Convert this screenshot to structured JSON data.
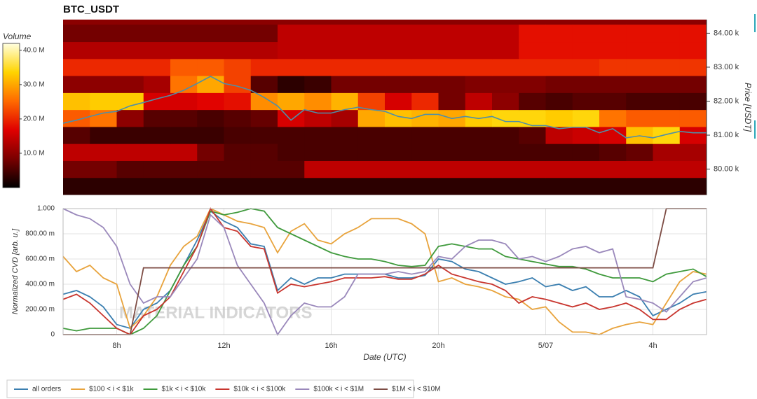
{
  "chart_data": [
    {
      "type": "heatmap",
      "title": "BTC_USDT",
      "ylabel": "Price [USDT]",
      "xlim": [
        6,
        30
      ],
      "x_edges": [
        6,
        7,
        8,
        9,
        10,
        11,
        12,
        13,
        14,
        15,
        16,
        17,
        18,
        19,
        20,
        21,
        22,
        23,
        24,
        25,
        26,
        27,
        28,
        29,
        30
      ],
      "y_edges": [
        79.25,
        79.75,
        80.25,
        80.75,
        81.25,
        81.75,
        82.25,
        82.75,
        83.25,
        83.75,
        84.25
      ],
      "ylim": [
        79.25,
        84.4
      ],
      "yticks": [
        {
          "value": 80,
          "label": "80.00 k"
        },
        {
          "value": 81,
          "label": "81.00 k"
        },
        {
          "value": 82,
          "label": "82.00 k"
        },
        {
          "value": 83,
          "label": "83.00 k"
        },
        {
          "value": 84,
          "label": "84.00 k"
        }
      ],
      "background": "#8b0000",
      "values": [
        [
          3,
          3,
          3,
          3,
          3,
          3,
          3,
          3,
          3,
          3,
          3,
          3,
          3,
          3,
          3,
          3,
          3,
          3,
          3,
          3,
          3,
          3,
          3,
          3
        ],
        [
          8,
          8,
          6,
          6,
          6,
          6,
          6,
          6,
          6,
          14,
          14,
          14,
          14,
          14,
          14,
          14,
          14,
          14,
          14,
          14,
          14,
          14,
          14,
          14
        ],
        [
          14,
          14,
          14,
          14,
          14,
          8,
          6,
          6,
          5,
          5,
          5,
          5,
          5,
          5,
          5,
          5,
          5,
          5,
          5,
          5,
          6,
          7,
          12,
          12
        ],
        [
          6,
          4,
          4,
          4,
          4,
          4,
          5,
          5,
          5,
          5,
          5,
          5,
          5,
          5,
          5,
          5,
          5,
          6,
          14,
          15,
          16,
          32,
          34,
          16
        ],
        [
          24,
          26,
          10,
          6,
          6,
          5,
          6,
          7,
          16,
          14,
          12,
          30,
          32,
          31,
          30,
          33,
          34,
          34,
          33,
          34,
          26,
          24,
          24,
          24
        ],
        [
          32,
          33,
          33,
          16,
          16,
          17,
          18,
          28,
          30,
          28,
          31,
          22,
          16,
          20,
          8,
          14,
          10,
          6,
          5,
          6,
          6,
          5,
          5,
          5
        ],
        [
          10,
          10,
          10,
          12,
          26,
          30,
          22,
          6,
          3,
          4,
          8,
          8,
          8,
          8,
          8,
          9,
          9,
          9,
          8,
          8,
          8,
          8,
          8,
          8
        ],
        [
          20,
          20,
          20,
          20,
          24,
          24,
          22,
          20,
          20,
          20,
          20,
          20,
          20,
          20,
          20,
          20,
          20,
          20,
          20,
          20,
          21,
          21,
          21,
          21
        ],
        [
          13,
          13,
          13,
          13,
          13,
          13,
          13,
          13,
          14,
          14,
          14,
          14,
          14,
          14,
          14,
          14,
          14,
          18,
          18,
          18,
          18,
          18,
          18,
          18
        ],
        [
          8,
          8,
          8,
          8,
          8,
          8,
          8,
          8,
          14,
          14,
          14,
          14,
          14,
          14,
          14,
          14,
          14,
          18,
          18,
          18,
          18,
          18,
          18,
          18
        ]
      ],
      "colorscale": [
        "#000000",
        "#7a0000",
        "#e00000",
        "#ff6a00",
        "#ffd400",
        "#ffffe0"
      ],
      "colorbar": {
        "title": "Volume",
        "lim": [
          0,
          42
        ],
        "ticks": [
          {
            "value": 10,
            "label": "10.0 M"
          },
          {
            "value": 20,
            "label": "20.0 M"
          },
          {
            "value": 30,
            "label": "30.0 M"
          },
          {
            "value": 40,
            "label": "40.0 M"
          }
        ]
      },
      "price": {
        "color": "#4f8fa8",
        "x": [
          6,
          6.5,
          7,
          7.5,
          8,
          8.5,
          9,
          9.5,
          10,
          10.5,
          11,
          11.5,
          12,
          12.5,
          13,
          13.5,
          14,
          14.5,
          15,
          15.5,
          16,
          16.5,
          17,
          17.5,
          18,
          18.5,
          19,
          19.5,
          20,
          20.5,
          21,
          21.5,
          22,
          22.5,
          23,
          23.5,
          24,
          24.5,
          25,
          25.5,
          26,
          26.5,
          27,
          27.5,
          28,
          28.5,
          29,
          29.5,
          30
        ],
        "values": [
          81.35,
          81.44,
          81.55,
          81.65,
          81.7,
          81.86,
          81.96,
          82.07,
          82.17,
          82.32,
          82.52,
          82.73,
          82.52,
          82.44,
          82.32,
          82.11,
          81.86,
          81.44,
          81.75,
          81.65,
          81.65,
          81.75,
          81.82,
          81.75,
          81.7,
          81.55,
          81.49,
          81.61,
          81.61,
          81.49,
          81.55,
          81.49,
          81.55,
          81.4,
          81.4,
          81.28,
          81.28,
          81.19,
          81.23,
          81.23,
          81.07,
          81.19,
          80.92,
          80.98,
          80.92,
          81.02,
          81.11,
          81.07,
          81.07
        ]
      }
    },
    {
      "type": "line",
      "xlabel": "Date (UTC)",
      "ylabel": "Normalized CVD [arb. u.]",
      "watermark": "MATERIAL INDICATORS",
      "grid": true,
      "legend": "bottom",
      "xlim": [
        6,
        30
      ],
      "xticks": [
        {
          "value": 8,
          "label": "8h"
        },
        {
          "value": 12,
          "label": "12h"
        },
        {
          "value": 16,
          "label": "16h"
        },
        {
          "value": 20,
          "label": "20h"
        },
        {
          "value": 24,
          "label": "5/07"
        },
        {
          "value": 28,
          "label": "4h"
        }
      ],
      "ylim": [
        0,
        1
      ],
      "yticks": [
        0,
        {
          "value": 0.2,
          "label": "200.00 m"
        },
        {
          "value": 0.4,
          "label": "400.00 m"
        },
        {
          "value": 0.6,
          "label": "600.00 m"
        },
        {
          "value": 0.8,
          "label": "800.00 m"
        },
        {
          "value": 1,
          "label": "1.000"
        }
      ],
      "x": [
        6,
        6.5,
        7,
        7.5,
        8,
        8.5,
        9,
        9.5,
        10,
        10.5,
        11,
        11.5,
        12,
        12.5,
        13,
        13.5,
        14,
        14.5,
        15,
        15.5,
        16,
        16.5,
        17,
        17.5,
        18,
        18.5,
        19,
        19.5,
        20,
        20.5,
        21,
        21.5,
        22,
        22.5,
        23,
        23.5,
        24,
        24.5,
        25,
        25.5,
        26,
        26.5,
        27,
        27.5,
        28,
        28.5,
        29,
        29.5,
        30
      ],
      "series": [
        {
          "name": "all orders",
          "color": "#3b7fb0",
          "values": [
            0.32,
            0.35,
            0.3,
            0.22,
            0.08,
            0.05,
            0.2,
            0.25,
            0.35,
            0.55,
            0.75,
            0.98,
            0.9,
            0.85,
            0.72,
            0.7,
            0.35,
            0.45,
            0.4,
            0.45,
            0.45,
            0.48,
            0.48,
            0.48,
            0.48,
            0.45,
            0.45,
            0.47,
            0.6,
            0.58,
            0.52,
            0.5,
            0.45,
            0.4,
            0.42,
            0.45,
            0.38,
            0.4,
            0.35,
            0.38,
            0.3,
            0.3,
            0.35,
            0.3,
            0.15,
            0.2,
            0.25,
            0.32,
            0.34
          ]
        },
        {
          "name": "$100 < i < $1k",
          "color": "#e8a33c",
          "values": [
            0.62,
            0.5,
            0.55,
            0.45,
            0.4,
            0.05,
            0.15,
            0.3,
            0.55,
            0.7,
            0.78,
            1.0,
            0.95,
            0.9,
            0.88,
            0.85,
            0.65,
            0.82,
            0.88,
            0.75,
            0.72,
            0.8,
            0.85,
            0.92,
            0.92,
            0.92,
            0.88,
            0.8,
            0.42,
            0.45,
            0.4,
            0.38,
            0.35,
            0.3,
            0.28,
            0.2,
            0.22,
            0.1,
            0.02,
            0.02,
            0,
            0.05,
            0.08,
            0.1,
            0.08,
            0.25,
            0.42,
            0.5,
            0.48
          ]
        },
        {
          "name": "$1k < i < $10k",
          "color": "#3f9a3c",
          "values": [
            0.05,
            0.03,
            0.05,
            0.05,
            0.05,
            0,
            0.05,
            0.15,
            0.35,
            0.55,
            0.7,
            0.98,
            0.95,
            0.97,
            1.0,
            0.98,
            0.85,
            0.8,
            0.75,
            0.7,
            0.65,
            0.62,
            0.6,
            0.6,
            0.58,
            0.55,
            0.54,
            0.55,
            0.7,
            0.72,
            0.7,
            0.68,
            0.68,
            0.62,
            0.6,
            0.58,
            0.56,
            0.54,
            0.54,
            0.52,
            0.48,
            0.45,
            0.45,
            0.45,
            0.42,
            0.48,
            0.5,
            0.52,
            0.46
          ]
        },
        {
          "name": "$10k < i < $100k",
          "color": "#c8352e",
          "values": [
            0.28,
            0.32,
            0.25,
            0.15,
            0.05,
            0,
            0.15,
            0.2,
            0.3,
            0.5,
            0.7,
            1.0,
            0.85,
            0.82,
            0.7,
            0.68,
            0.33,
            0.4,
            0.38,
            0.4,
            0.42,
            0.45,
            0.45,
            0.45,
            0.46,
            0.44,
            0.44,
            0.48,
            0.55,
            0.48,
            0.45,
            0.42,
            0.4,
            0.35,
            0.25,
            0.3,
            0.28,
            0.25,
            0.22,
            0.25,
            0.2,
            0.22,
            0.25,
            0.2,
            0.12,
            0.12,
            0.2,
            0.25,
            0.28
          ]
        },
        {
          "name": "$100k < i < $1M",
          "color": "#9a88bb",
          "values": [
            1.0,
            0.95,
            0.92,
            0.85,
            0.7,
            0.4,
            0.25,
            0.3,
            0.3,
            0.45,
            0.6,
            0.95,
            0.85,
            0.55,
            0.4,
            0.25,
            0,
            0.15,
            0.25,
            0.22,
            0.22,
            0.3,
            0.48,
            0.48,
            0.48,
            0.5,
            0.48,
            0.5,
            0.62,
            0.6,
            0.7,
            0.75,
            0.75,
            0.72,
            0.6,
            0.62,
            0.58,
            0.62,
            0.68,
            0.7,
            0.65,
            0.68,
            0.3,
            0.28,
            0.25,
            0.18,
            0.3,
            0.42,
            0.45
          ]
        },
        {
          "name": "$1M < i < $10M",
          "color": "#7d4c44",
          "values": [
            0,
            0,
            0,
            0,
            0,
            0,
            0.53,
            0.53,
            0.53,
            0.53,
            0.53,
            0.53,
            0.53,
            0.53,
            0.53,
            0.53,
            0.53,
            0.53,
            0.53,
            0.53,
            0.53,
            0.53,
            0.53,
            0.53,
            0.53,
            0.53,
            0.53,
            0.53,
            0.53,
            0.53,
            0.53,
            0.53,
            0.53,
            0.53,
            0.53,
            0.53,
            0.53,
            0.53,
            0.53,
            0.53,
            0.53,
            0.53,
            0.53,
            0.53,
            0.53,
            1.0,
            1.0,
            1.0,
            1.0
          ]
        }
      ]
    }
  ]
}
